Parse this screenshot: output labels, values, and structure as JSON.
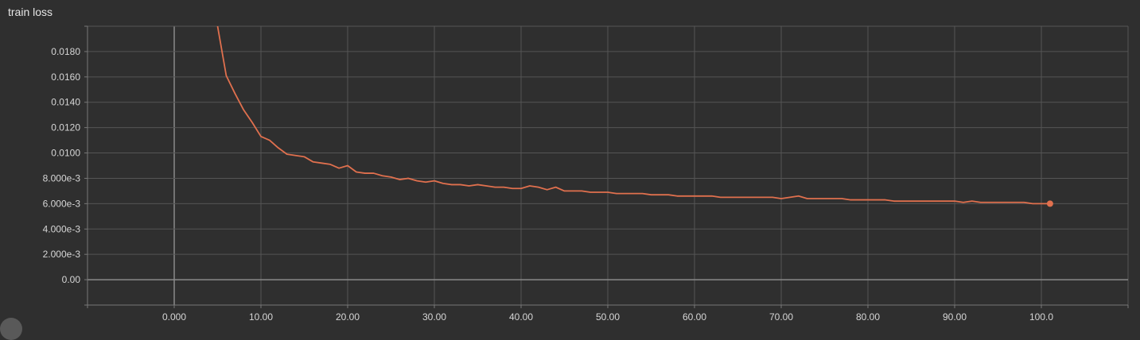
{
  "chart_data": {
    "type": "line",
    "title": "train loss",
    "xlabel": "",
    "ylabel": "",
    "xlim": [
      -10,
      110
    ],
    "ylim": [
      -0.002,
      0.02
    ],
    "grid": true,
    "x_ticks": [
      0,
      10,
      20,
      30,
      40,
      50,
      60,
      70,
      80,
      90,
      100
    ],
    "x_tick_labels": [
      "0.000",
      "10.00",
      "20.00",
      "30.00",
      "40.00",
      "50.00",
      "60.00",
      "70.00",
      "80.00",
      "90.00",
      "100.0"
    ],
    "y_ticks": [
      0,
      0.002,
      0.004,
      0.006,
      0.008,
      0.01,
      0.012,
      0.014,
      0.016,
      0.018
    ],
    "y_tick_labels": [
      "0.00",
      "2.000e-3",
      "4.000e-3",
      "6.000e-3",
      "8.000e-3",
      "0.0100",
      "0.0120",
      "0.0140",
      "0.0160",
      "0.0180"
    ],
    "colors": {
      "line": "#e0704e",
      "grid": "#555555",
      "axis": "#777777",
      "zero_line": "#8a8a8a",
      "background": "#2f2f2f"
    },
    "series": [
      {
        "x": [
          5,
          6,
          7,
          8,
          9,
          10,
          11,
          12,
          13,
          14,
          15,
          16,
          17,
          18,
          19,
          20,
          21,
          22,
          23,
          24,
          25,
          26,
          27,
          28,
          29,
          30,
          31,
          32,
          33,
          34,
          35,
          36,
          37,
          38,
          39,
          40,
          41,
          42,
          43,
          44,
          45,
          46,
          47,
          48,
          49,
          50,
          51,
          52,
          53,
          54,
          55,
          56,
          57,
          58,
          59,
          60,
          61,
          62,
          63,
          64,
          65,
          66,
          67,
          68,
          69,
          70,
          71,
          72,
          73,
          74,
          75,
          76,
          77,
          78,
          79,
          80,
          81,
          82,
          83,
          84,
          85,
          86,
          87,
          88,
          89,
          90,
          91,
          92,
          93,
          94,
          95,
          96,
          97,
          98,
          99,
          100,
          101
        ],
        "y": [
          0.02,
          0.0161,
          0.0147,
          0.0134,
          0.0124,
          0.0113,
          0.011,
          0.0104,
          0.0099,
          0.0098,
          0.0097,
          0.0093,
          0.0092,
          0.0091,
          0.0088,
          0.009,
          0.0085,
          0.0084,
          0.0084,
          0.0082,
          0.0081,
          0.0079,
          0.008,
          0.0078,
          0.0077,
          0.0078,
          0.0076,
          0.0075,
          0.0075,
          0.0074,
          0.0075,
          0.0074,
          0.0073,
          0.0073,
          0.0072,
          0.0072,
          0.0074,
          0.0073,
          0.0071,
          0.0073,
          0.007,
          0.007,
          0.007,
          0.0069,
          0.0069,
          0.0069,
          0.0068,
          0.0068,
          0.0068,
          0.0068,
          0.0067,
          0.0067,
          0.0067,
          0.0066,
          0.0066,
          0.0066,
          0.0066,
          0.0066,
          0.0065,
          0.0065,
          0.0065,
          0.0065,
          0.0065,
          0.0065,
          0.0065,
          0.0064,
          0.0065,
          0.0066,
          0.0064,
          0.0064,
          0.0064,
          0.0064,
          0.0064,
          0.0063,
          0.0063,
          0.0063,
          0.0063,
          0.0063,
          0.0062,
          0.0062,
          0.0062,
          0.0062,
          0.0062,
          0.0062,
          0.0062,
          0.0062,
          0.0061,
          0.0062,
          0.0061,
          0.0061,
          0.0061,
          0.0061,
          0.0061,
          0.0061,
          0.006,
          0.006,
          0.006
        ]
      }
    ]
  }
}
